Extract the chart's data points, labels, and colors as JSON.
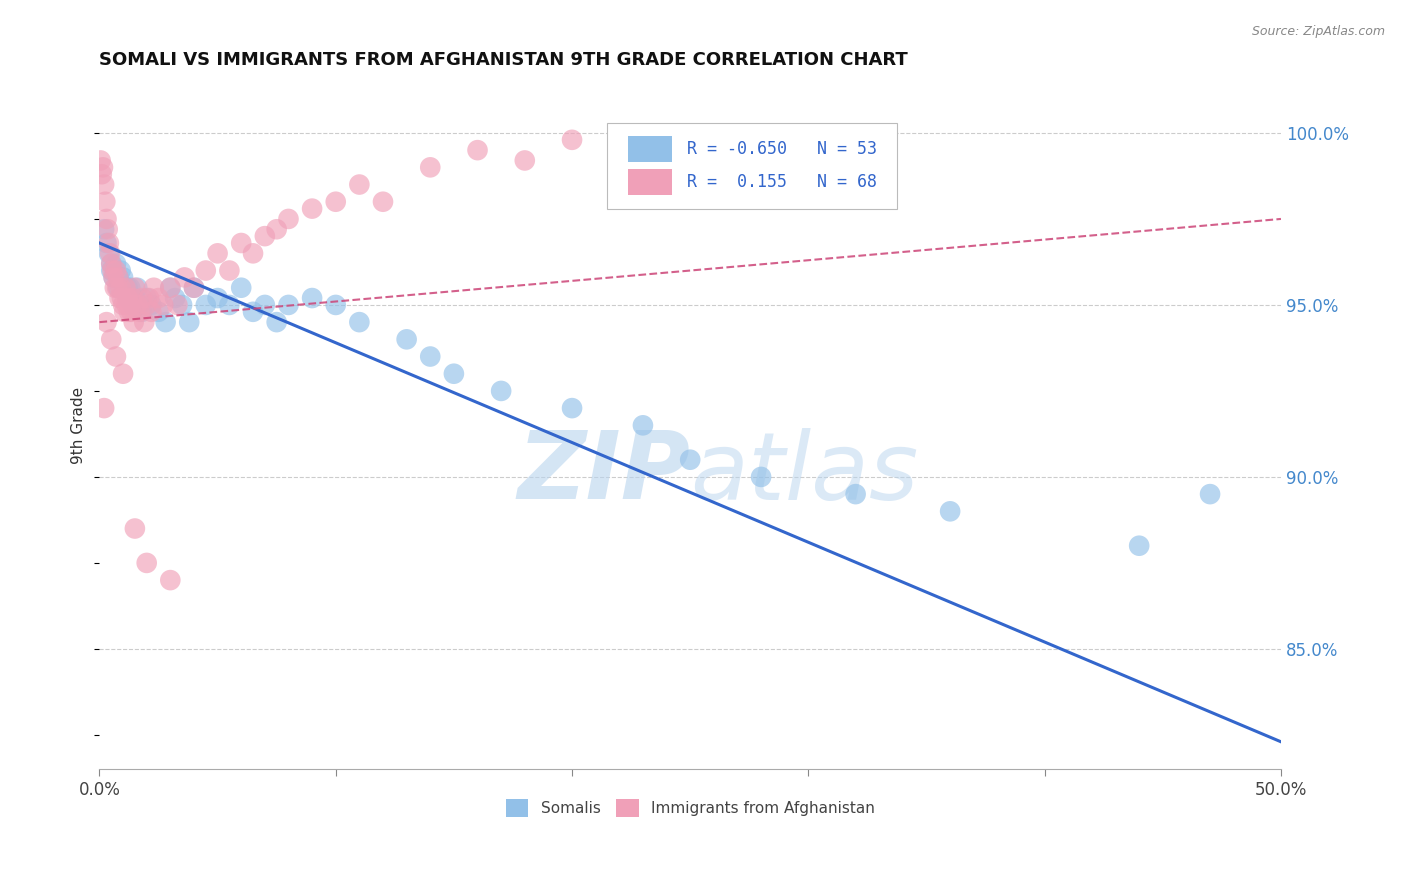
{
  "title": "SOMALI VS IMMIGRANTS FROM AFGHANISTAN 9TH GRADE CORRELATION CHART",
  "source": "Source: ZipAtlas.com",
  "ylabel": "9th Grade",
  "xlim": [
    0.0,
    50.0
  ],
  "ylim": [
    81.5,
    101.5
  ],
  "yticks_right": [
    85.0,
    90.0,
    95.0,
    100.0
  ],
  "ytick_labels_right": [
    "85.0%",
    "90.0%",
    "95.0%",
    "100.0%"
  ],
  "xticks": [
    0.0,
    10.0,
    20.0,
    30.0,
    40.0,
    50.0
  ],
  "xtick_labels": [
    "0.0%",
    "",
    "",
    "",
    "",
    "50.0%"
  ],
  "legend_r_blue": "-0.650",
  "legend_n_blue": "53",
  "legend_r_pink": " 0.155",
  "legend_n_pink": "68",
  "blue_color": "#92c0e8",
  "pink_color": "#f0a0b8",
  "blue_line_color": "#3366cc",
  "pink_line_color": "#cc4477",
  "blue_line_x0": 0.0,
  "blue_line_y0": 96.8,
  "blue_line_x1": 50.0,
  "blue_line_y1": 82.3,
  "pink_line_x0": 0.0,
  "pink_line_y0": 94.5,
  "pink_line_x1": 50.0,
  "pink_line_y1": 97.5,
  "blue_scatter_x": [
    0.2,
    0.3,
    0.4,
    0.5,
    0.6,
    0.7,
    0.8,
    0.9,
    1.0,
    1.1,
    1.2,
    1.3,
    1.4,
    1.5,
    1.6,
    1.7,
    1.8,
    2.0,
    2.2,
    2.5,
    2.8,
    3.0,
    3.2,
    3.5,
    3.8,
    4.0,
    4.5,
    5.0,
    5.5,
    6.0,
    6.5,
    7.0,
    7.5,
    8.0,
    9.0,
    10.0,
    11.0,
    13.0,
    14.0,
    15.0,
    17.0,
    20.0,
    23.0,
    25.0,
    28.0,
    32.0,
    36.0,
    44.0,
    47.0,
    0.5,
    0.8,
    1.2,
    1.5
  ],
  "blue_scatter_y": [
    97.2,
    96.8,
    96.5,
    96.0,
    95.8,
    96.2,
    95.5,
    96.0,
    95.8,
    95.5,
    95.2,
    95.5,
    95.0,
    95.2,
    95.5,
    95.0,
    94.8,
    95.2,
    95.0,
    94.8,
    94.5,
    95.5,
    95.2,
    95.0,
    94.5,
    95.5,
    95.0,
    95.2,
    95.0,
    95.5,
    94.8,
    95.0,
    94.5,
    95.0,
    95.2,
    95.0,
    94.5,
    94.0,
    93.5,
    93.0,
    92.5,
    92.0,
    91.5,
    90.5,
    90.0,
    89.5,
    89.0,
    88.0,
    89.5,
    96.2,
    95.8,
    95.5,
    95.0
  ],
  "pink_scatter_x": [
    0.05,
    0.1,
    0.15,
    0.2,
    0.25,
    0.3,
    0.35,
    0.4,
    0.45,
    0.5,
    0.55,
    0.6,
    0.65,
    0.7,
    0.75,
    0.8,
    0.85,
    0.9,
    0.95,
    1.0,
    1.05,
    1.1,
    1.15,
    1.2,
    1.25,
    1.3,
    1.35,
    1.4,
    1.45,
    1.5,
    1.6,
    1.7,
    1.8,
    1.9,
    2.0,
    2.1,
    2.2,
    2.3,
    2.5,
    2.7,
    3.0,
    3.3,
    3.6,
    4.0,
    4.5,
    5.0,
    5.5,
    6.0,
    6.5,
    7.0,
    7.5,
    8.0,
    9.0,
    10.0,
    11.0,
    12.0,
    14.0,
    16.0,
    18.0,
    20.0,
    0.3,
    0.5,
    0.7,
    1.0,
    1.5,
    2.0,
    3.0,
    0.2
  ],
  "pink_scatter_y": [
    99.2,
    98.8,
    99.0,
    98.5,
    98.0,
    97.5,
    97.2,
    96.8,
    96.5,
    96.2,
    96.0,
    95.8,
    95.5,
    96.0,
    95.5,
    95.8,
    95.2,
    95.5,
    95.2,
    95.0,
    94.8,
    95.5,
    95.0,
    95.2,
    94.8,
    95.0,
    94.8,
    95.2,
    94.5,
    95.5,
    95.0,
    94.8,
    95.2,
    94.5,
    95.0,
    95.2,
    94.8,
    95.5,
    95.2,
    95.0,
    95.5,
    95.0,
    95.8,
    95.5,
    96.0,
    96.5,
    96.0,
    96.8,
    96.5,
    97.0,
    97.2,
    97.5,
    97.8,
    98.0,
    98.5,
    98.0,
    99.0,
    99.5,
    99.2,
    99.8,
    94.5,
    94.0,
    93.5,
    93.0,
    88.5,
    87.5,
    87.0,
    92.0
  ]
}
